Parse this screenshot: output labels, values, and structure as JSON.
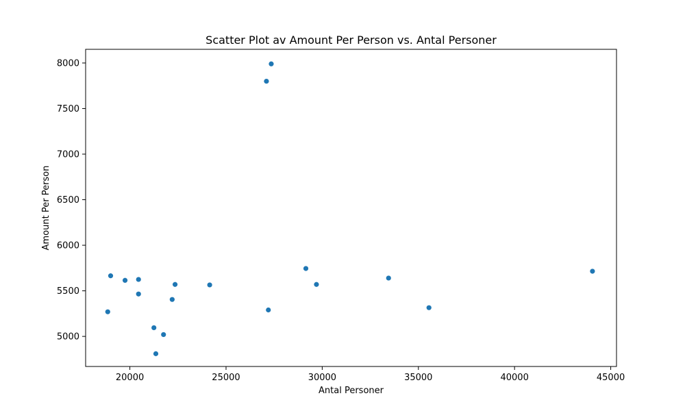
{
  "chart_data": {
    "type": "scatter",
    "title": "Scatter Plot av Amount Per Person vs. Antal Personer",
    "xlabel": "Antal Personer",
    "ylabel": "Amount Per Person",
    "xlim": [
      17700,
      45300
    ],
    "ylim": [
      4670,
      8150
    ],
    "xticks": [
      20000,
      25000,
      30000,
      35000,
      40000,
      45000
    ],
    "yticks": [
      5000,
      5500,
      6000,
      6500,
      7000,
      7500,
      8000
    ],
    "grid": false,
    "color": "#1f77b4",
    "points": [
      {
        "x": 27350,
        "y": 7990
      },
      {
        "x": 27100,
        "y": 7800
      },
      {
        "x": 29150,
        "y": 5745
      },
      {
        "x": 44050,
        "y": 5715
      },
      {
        "x": 19000,
        "y": 5665
      },
      {
        "x": 33450,
        "y": 5640
      },
      {
        "x": 20450,
        "y": 5625
      },
      {
        "x": 19750,
        "y": 5615
      },
      {
        "x": 29700,
        "y": 5570
      },
      {
        "x": 22350,
        "y": 5570
      },
      {
        "x": 24150,
        "y": 5565
      },
      {
        "x": 20450,
        "y": 5465
      },
      {
        "x": 22200,
        "y": 5405
      },
      {
        "x": 35550,
        "y": 5315
      },
      {
        "x": 27200,
        "y": 5290
      },
      {
        "x": 18850,
        "y": 5270
      },
      {
        "x": 21250,
        "y": 5095
      },
      {
        "x": 21750,
        "y": 5020
      },
      {
        "x": 21350,
        "y": 4810
      }
    ]
  }
}
